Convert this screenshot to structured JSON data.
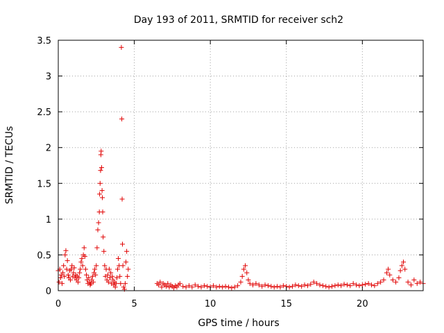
{
  "chart_data": {
    "type": "scatter",
    "title": "Day 193 of 2011, SRMTID for receiver sch2",
    "xlabel": "GPS time / hours",
    "ylabel": "SRMTID / TECUs",
    "xlim": [
      0,
      24
    ],
    "ylim": [
      0,
      3.5
    ],
    "xticks": [
      0,
      5,
      10,
      15,
      20
    ],
    "xtick_labels": [
      "0",
      "5",
      "10",
      "15",
      "20"
    ],
    "yticks": [
      0,
      0.5,
      1,
      1.5,
      2,
      2.5,
      3,
      3.5
    ],
    "ytick_labels": [
      "0",
      "0.5",
      "1",
      "1.5",
      "2",
      "2.5",
      "3",
      "3.5"
    ],
    "grid": true,
    "marker": "plus",
    "marker_color": "#e00000",
    "series": [
      {
        "points": [
          [
            0.0,
            0.28
          ],
          [
            0.05,
            0.12
          ],
          [
            0.1,
            0.3
          ],
          [
            0.15,
            0.18
          ],
          [
            0.2,
            0.22
          ],
          [
            0.25,
            0.1
          ],
          [
            0.3,
            0.25
          ],
          [
            0.35,
            0.35
          ],
          [
            0.4,
            0.2
          ],
          [
            0.45,
            0.5
          ],
          [
            0.5,
            0.56
          ],
          [
            0.55,
            0.3
          ],
          [
            0.6,
            0.42
          ],
          [
            0.65,
            0.22
          ],
          [
            0.7,
            0.18
          ],
          [
            0.75,
            0.28
          ],
          [
            0.8,
            0.15
          ],
          [
            0.85,
            0.3
          ],
          [
            0.9,
            0.35
          ],
          [
            0.95,
            0.2
          ],
          [
            1.0,
            0.25
          ],
          [
            1.05,
            0.32
          ],
          [
            1.1,
            0.18
          ],
          [
            1.15,
            0.22
          ],
          [
            1.2,
            0.15
          ],
          [
            1.25,
            0.2
          ],
          [
            1.3,
            0.12
          ],
          [
            1.35,
            0.18
          ],
          [
            1.4,
            0.25
          ],
          [
            1.45,
            0.3
          ],
          [
            1.5,
            0.4
          ],
          [
            1.55,
            0.45
          ],
          [
            1.6,
            0.35
          ],
          [
            1.65,
            0.5
          ],
          [
            1.7,
            0.6
          ],
          [
            1.75,
            0.48
          ],
          [
            1.8,
            0.3
          ],
          [
            1.85,
            0.22
          ],
          [
            1.9,
            0.15
          ],
          [
            1.95,
            0.1
          ],
          [
            2.0,
            0.18
          ],
          [
            2.05,
            0.12
          ],
          [
            2.1,
            0.08
          ],
          [
            2.15,
            0.1
          ],
          [
            2.2,
            0.15
          ],
          [
            2.25,
            0.2
          ],
          [
            2.3,
            0.12
          ],
          [
            2.35,
            0.25
          ],
          [
            2.4,
            0.3
          ],
          [
            2.45,
            0.22
          ],
          [
            2.5,
            0.35
          ],
          [
            2.55,
            0.6
          ],
          [
            2.6,
            0.85
          ],
          [
            2.65,
            0.95
          ],
          [
            2.7,
            1.1
          ],
          [
            2.72,
            1.35
          ],
          [
            2.75,
            1.5
          ],
          [
            2.78,
            1.68
          ],
          [
            2.8,
            1.9
          ],
          [
            2.82,
            1.95
          ],
          [
            2.85,
            1.72
          ],
          [
            2.88,
            1.4
          ],
          [
            2.9,
            1.3
          ],
          [
            2.92,
            1.1
          ],
          [
            2.95,
            0.75
          ],
          [
            3.0,
            0.55
          ],
          [
            3.05,
            0.35
          ],
          [
            3.1,
            0.2
          ],
          [
            3.15,
            0.3
          ],
          [
            3.2,
            0.15
          ],
          [
            3.25,
            0.22
          ],
          [
            3.3,
            0.12
          ],
          [
            3.35,
            0.3
          ],
          [
            3.4,
            0.18
          ],
          [
            3.45,
            0.25
          ],
          [
            3.5,
            0.1
          ],
          [
            3.55,
            0.2
          ],
          [
            3.6,
            0.15
          ],
          [
            3.65,
            0.08
          ],
          [
            3.7,
            0.12
          ],
          [
            3.75,
            0.05
          ],
          [
            3.8,
            0.1
          ],
          [
            3.85,
            0.18
          ],
          [
            3.9,
            0.3
          ],
          [
            3.95,
            0.45
          ],
          [
            4.0,
            0.35
          ],
          [
            4.05,
            0.2
          ],
          [
            4.1,
            0.1
          ],
          [
            4.15,
            3.4
          ],
          [
            4.18,
            2.4
          ],
          [
            4.2,
            1.28
          ],
          [
            4.22,
            0.65
          ],
          [
            4.25,
            0.35
          ],
          [
            4.3,
            0.05
          ],
          [
            4.35,
            0.02
          ],
          [
            4.4,
            0.1
          ],
          [
            4.45,
            0.4
          ],
          [
            4.5,
            0.55
          ],
          [
            4.55,
            0.2
          ],
          [
            4.6,
            0.3
          ],
          [
            6.5,
            0.1
          ],
          [
            6.6,
            0.08
          ],
          [
            6.7,
            0.12
          ],
          [
            6.8,
            0.05
          ],
          [
            6.9,
            0.1
          ],
          [
            7.0,
            0.08
          ],
          [
            7.1,
            0.06
          ],
          [
            7.2,
            0.1
          ],
          [
            7.3,
            0.05
          ],
          [
            7.4,
            0.08
          ],
          [
            7.5,
            0.06
          ],
          [
            7.6,
            0.04
          ],
          [
            7.7,
            0.07
          ],
          [
            7.8,
            0.05
          ],
          [
            7.9,
            0.08
          ],
          [
            8.0,
            0.1
          ],
          [
            8.2,
            0.06
          ],
          [
            8.4,
            0.05
          ],
          [
            8.6,
            0.07
          ],
          [
            8.8,
            0.05
          ],
          [
            9.0,
            0.08
          ],
          [
            9.2,
            0.06
          ],
          [
            9.4,
            0.05
          ],
          [
            9.6,
            0.07
          ],
          [
            9.8,
            0.06
          ],
          [
            10.0,
            0.05
          ],
          [
            10.2,
            0.07
          ],
          [
            10.4,
            0.05
          ],
          [
            10.6,
            0.06
          ],
          [
            10.8,
            0.05
          ],
          [
            11.0,
            0.06
          ],
          [
            11.2,
            0.05
          ],
          [
            11.4,
            0.04
          ],
          [
            11.6,
            0.05
          ],
          [
            11.8,
            0.07
          ],
          [
            12.0,
            0.12
          ],
          [
            12.1,
            0.2
          ],
          [
            12.2,
            0.3
          ],
          [
            12.3,
            0.35
          ],
          [
            12.4,
            0.25
          ],
          [
            12.5,
            0.15
          ],
          [
            12.6,
            0.1
          ],
          [
            12.8,
            0.08
          ],
          [
            13.0,
            0.1
          ],
          [
            13.2,
            0.08
          ],
          [
            13.4,
            0.06
          ],
          [
            13.6,
            0.08
          ],
          [
            13.8,
            0.07
          ],
          [
            14.0,
            0.06
          ],
          [
            14.2,
            0.05
          ],
          [
            14.4,
            0.06
          ],
          [
            14.6,
            0.05
          ],
          [
            14.8,
            0.07
          ],
          [
            15.0,
            0.06
          ],
          [
            15.2,
            0.05
          ],
          [
            15.4,
            0.06
          ],
          [
            15.6,
            0.08
          ],
          [
            15.8,
            0.07
          ],
          [
            16.0,
            0.06
          ],
          [
            16.2,
            0.08
          ],
          [
            16.4,
            0.07
          ],
          [
            16.6,
            0.09
          ],
          [
            16.8,
            0.12
          ],
          [
            17.0,
            0.1
          ],
          [
            17.2,
            0.08
          ],
          [
            17.4,
            0.07
          ],
          [
            17.6,
            0.06
          ],
          [
            17.8,
            0.05
          ],
          [
            18.0,
            0.06
          ],
          [
            18.2,
            0.07
          ],
          [
            18.4,
            0.08
          ],
          [
            18.6,
            0.07
          ],
          [
            18.8,
            0.09
          ],
          [
            19.0,
            0.08
          ],
          [
            19.2,
            0.07
          ],
          [
            19.4,
            0.1
          ],
          [
            19.6,
            0.08
          ],
          [
            19.8,
            0.07
          ],
          [
            20.0,
            0.08
          ],
          [
            20.2,
            0.09
          ],
          [
            20.4,
            0.1
          ],
          [
            20.6,
            0.08
          ],
          [
            20.8,
            0.07
          ],
          [
            21.0,
            0.1
          ],
          [
            21.2,
            0.12
          ],
          [
            21.4,
            0.15
          ],
          [
            21.6,
            0.25
          ],
          [
            21.7,
            0.3
          ],
          [
            21.8,
            0.22
          ],
          [
            22.0,
            0.15
          ],
          [
            22.2,
            0.12
          ],
          [
            22.4,
            0.18
          ],
          [
            22.5,
            0.28
          ],
          [
            22.6,
            0.35
          ],
          [
            22.7,
            0.4
          ],
          [
            22.8,
            0.3
          ],
          [
            23.0,
            0.12
          ],
          [
            23.2,
            0.08
          ],
          [
            23.4,
            0.15
          ],
          [
            23.6,
            0.1
          ],
          [
            23.8,
            0.12
          ],
          [
            24.0,
            0.1
          ]
        ]
      }
    ]
  }
}
